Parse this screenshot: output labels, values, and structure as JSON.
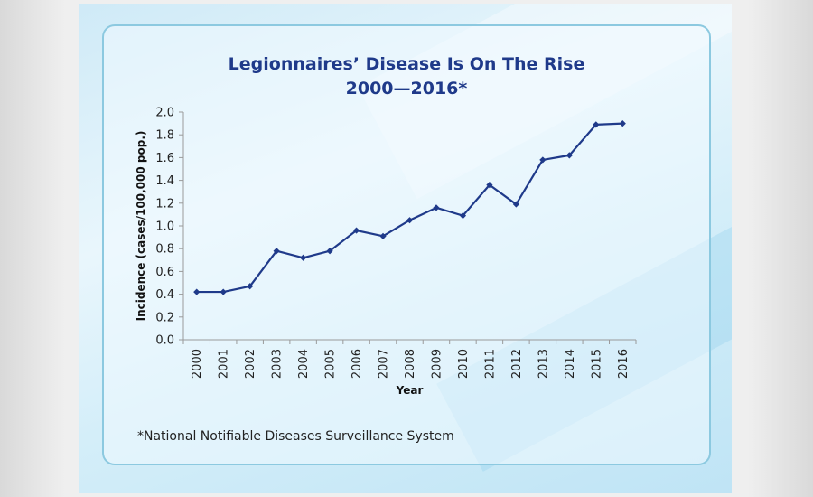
{
  "slide": {
    "title_line1": "Legionnaires’ Disease Is On The Rise",
    "title_line2": "2000—2016*",
    "footnote": "*National Notifiable Diseases Surveillance System",
    "accent_color": "#1f3a8a"
  },
  "chart_data": {
    "type": "line",
    "title": "Legionnaires’ Disease Is On The Rise 2000—2016*",
    "xlabel": "Year",
    "ylabel": "Incidence (cases/100,000 pop.)",
    "categories": [
      "2000",
      "2001",
      "2002",
      "2003",
      "2004",
      "2005",
      "2006",
      "2007",
      "2008",
      "2009",
      "2010",
      "2011",
      "2012",
      "2013",
      "2014",
      "2015",
      "2016"
    ],
    "series": [
      {
        "values": [
          0.42,
          0.42,
          0.47,
          0.78,
          0.72,
          0.78,
          0.96,
          0.91,
          1.05,
          1.16,
          1.09,
          1.36,
          1.19,
          1.58,
          1.62,
          1.89,
          1.9
        ],
        "color": "#1f3a8a"
      }
    ],
    "ylim": [
      0,
      2.0
    ],
    "yticks": [
      "0.0",
      "0.2",
      "0.4",
      "0.6",
      "0.8",
      "1.0",
      "1.2",
      "1.4",
      "1.6",
      "1.8",
      "2.0"
    ],
    "grid": false,
    "legend": "none"
  }
}
